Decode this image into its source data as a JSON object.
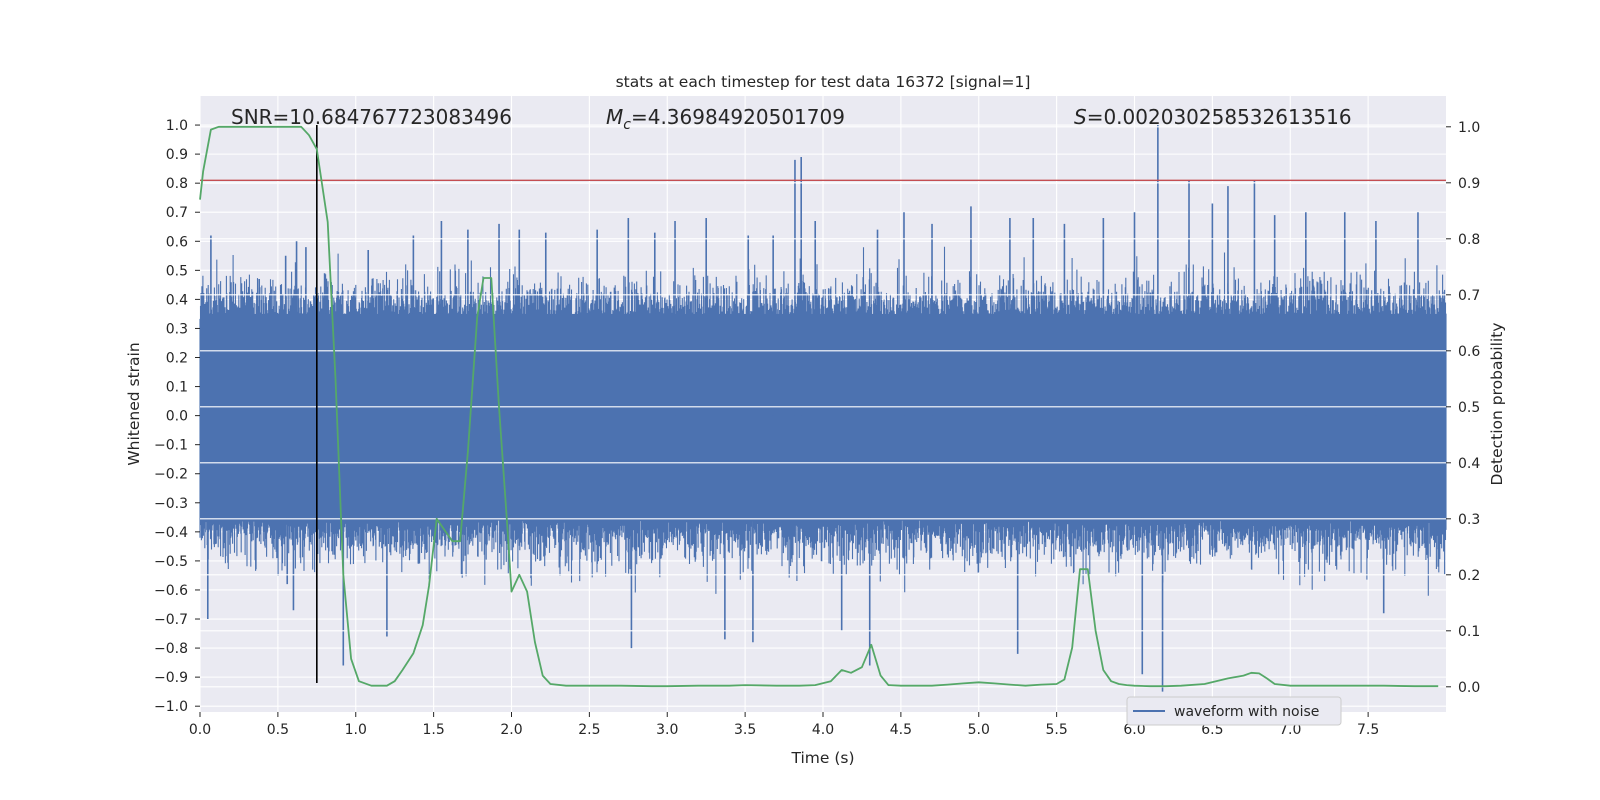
{
  "chart_data": {
    "type": "line",
    "title": "stats at each timestep for test data 16372 [signal=1]",
    "xlabel": "Time (s)",
    "ylabel_left": "Whitened strain",
    "ylabel_right": "Detection probability",
    "xlim": [
      0.0,
      8.0
    ],
    "ylim_left": [
      -1.02,
      1.1
    ],
    "ylim_right": [
      -0.045,
      1.055
    ],
    "x_ticks": [
      "0.0",
      "0.5",
      "1.0",
      "1.5",
      "2.0",
      "2.5",
      "3.0",
      "3.5",
      "4.0",
      "4.5",
      "5.0",
      "5.5",
      "6.0",
      "6.5",
      "7.0",
      "7.5"
    ],
    "y_left_ticks": [
      "-1.0",
      "-0.9",
      "-0.8",
      "-0.7",
      "-0.6",
      "-0.5",
      "-0.4",
      "-0.3",
      "-0.2",
      "-0.1",
      "0.0",
      "0.1",
      "0.2",
      "0.3",
      "0.4",
      "0.5",
      "0.6",
      "0.7",
      "0.8",
      "0.9",
      "1.0"
    ],
    "y_right_ticks": [
      "0.0",
      "0.1",
      "0.2",
      "0.3",
      "0.4",
      "0.5",
      "0.6",
      "0.7",
      "0.8",
      "0.9",
      "1.0"
    ],
    "grid": true,
    "annotations": {
      "snr": "SNR=10.684767723083496",
      "mc_symbol": "M",
      "mc_sub": "c",
      "mc_value": "=4.36984920501709",
      "s_symbol": "S",
      "s_value": "=0.002030258532613516"
    },
    "legend": {
      "placement": "lower-right",
      "entries": [
        "waveform with noise"
      ]
    },
    "series": [
      {
        "name": "waveform with noise",
        "axis": "left",
        "color": "#4c72b0",
        "note_envelope": "dense noise; core fills approximately -0.35..0.35",
        "spikes": [
          [
            0.05,
            -0.7
          ],
          [
            0.07,
            0.62
          ],
          [
            0.38,
            0.47
          ],
          [
            0.56,
            -0.58
          ],
          [
            0.55,
            0.55
          ],
          [
            0.62,
            0.6
          ],
          [
            0.6,
            -0.67
          ],
          [
            0.68,
            0.58
          ],
          [
            0.8,
            0.49
          ],
          [
            0.92,
            -0.86
          ],
          [
            1.08,
            0.57
          ],
          [
            1.2,
            -0.76
          ],
          [
            1.37,
            0.62
          ],
          [
            1.55,
            0.67
          ],
          [
            1.72,
            0.64
          ],
          [
            1.92,
            0.66
          ],
          [
            2.05,
            0.64
          ],
          [
            2.22,
            0.63
          ],
          [
            2.55,
            0.64
          ],
          [
            2.75,
            0.68
          ],
          [
            2.77,
            -0.8
          ],
          [
            2.92,
            0.63
          ],
          [
            3.05,
            0.67
          ],
          [
            3.25,
            0.68
          ],
          [
            3.37,
            -0.77
          ],
          [
            3.52,
            0.62
          ],
          [
            3.55,
            -0.78
          ],
          [
            3.68,
            0.62
          ],
          [
            3.82,
            0.88
          ],
          [
            3.86,
            0.89
          ],
          [
            3.95,
            0.67
          ],
          [
            4.12,
            -0.74
          ],
          [
            4.3,
            -0.86
          ],
          [
            4.35,
            0.64
          ],
          [
            4.52,
            0.7
          ],
          [
            4.7,
            0.66
          ],
          [
            4.95,
            0.72
          ],
          [
            5.2,
            0.68
          ],
          [
            5.25,
            -0.82
          ],
          [
            5.35,
            0.68
          ],
          [
            5.55,
            0.66
          ],
          [
            5.8,
            0.68
          ],
          [
            6.0,
            0.7
          ],
          [
            6.05,
            -0.89
          ],
          [
            6.15,
            1.0
          ],
          [
            6.18,
            -0.95
          ],
          [
            6.35,
            0.81
          ],
          [
            6.5,
            0.73
          ],
          [
            6.6,
            0.79
          ],
          [
            6.77,
            0.81
          ],
          [
            6.9,
            0.69
          ],
          [
            7.1,
            0.7
          ],
          [
            7.35,
            0.7
          ],
          [
            7.55,
            0.67
          ],
          [
            7.6,
            -0.68
          ],
          [
            7.82,
            0.7
          ],
          [
            7.95,
            -0.52
          ]
        ]
      },
      {
        "name": "",
        "axis": "right",
        "color": "#55a868",
        "x": [
          0.0,
          0.02,
          0.07,
          0.12,
          0.2,
          0.3,
          0.4,
          0.5,
          0.6,
          0.65,
          0.7,
          0.75,
          0.82,
          0.87,
          0.92,
          0.97,
          1.02,
          1.1,
          1.2,
          1.25,
          1.3,
          1.37,
          1.43,
          1.47,
          1.52,
          1.57,
          1.62,
          1.67,
          1.72,
          1.78,
          1.82,
          1.87,
          1.92,
          1.97,
          2.0,
          2.05,
          2.1,
          2.15,
          2.2,
          2.25,
          2.35,
          2.5,
          2.7,
          2.9,
          3.0,
          3.2,
          3.4,
          3.5,
          3.7,
          3.85,
          3.95,
          4.05,
          4.12,
          4.18,
          4.25,
          4.31,
          4.37,
          4.42,
          4.5,
          4.6,
          4.7,
          4.8,
          4.9,
          5.0,
          5.1,
          5.2,
          5.3,
          5.4,
          5.5,
          5.55,
          5.6,
          5.65,
          5.7,
          5.75,
          5.8,
          5.85,
          5.9,
          5.95,
          6.0,
          6.1,
          6.2,
          6.3,
          6.45,
          6.6,
          6.7,
          6.75,
          6.8,
          6.85,
          6.9,
          7.0,
          7.2,
          7.4,
          7.6,
          7.8,
          7.95
        ],
        "y": [
          0.87,
          0.92,
          0.995,
          1.0,
          1.0,
          1.0,
          1.0,
          1.0,
          1.0,
          1.0,
          0.985,
          0.96,
          0.83,
          0.55,
          0.2,
          0.05,
          0.01,
          0.002,
          0.002,
          0.01,
          0.03,
          0.06,
          0.11,
          0.18,
          0.3,
          0.28,
          0.26,
          0.26,
          0.42,
          0.66,
          0.73,
          0.73,
          0.5,
          0.3,
          0.17,
          0.2,
          0.17,
          0.08,
          0.02,
          0.005,
          0.002,
          0.002,
          0.002,
          0.001,
          0.001,
          0.002,
          0.002,
          0.003,
          0.002,
          0.002,
          0.003,
          0.01,
          0.03,
          0.025,
          0.035,
          0.075,
          0.02,
          0.003,
          0.002,
          0.002,
          0.002,
          0.004,
          0.006,
          0.008,
          0.006,
          0.004,
          0.002,
          0.004,
          0.005,
          0.013,
          0.07,
          0.21,
          0.21,
          0.1,
          0.03,
          0.01,
          0.005,
          0.003,
          0.002,
          0.001,
          0.001,
          0.002,
          0.005,
          0.015,
          0.02,
          0.025,
          0.024,
          0.015,
          0.005,
          0.002,
          0.002,
          0.002,
          0.002,
          0.001,
          0.001
        ]
      }
    ],
    "hlines": [
      {
        "axis": "left",
        "y": 0.81,
        "color": "#c44e52"
      }
    ],
    "vlines": [
      {
        "x": 0.75,
        "ymin": -0.92,
        "ymax": 1.0,
        "color": "#000000"
      }
    ]
  }
}
